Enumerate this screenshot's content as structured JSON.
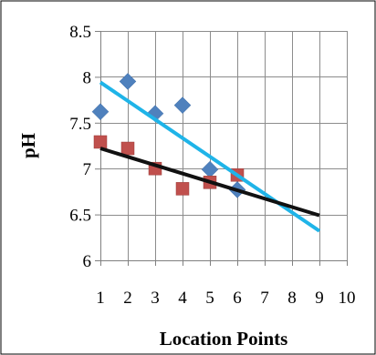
{
  "chart_data": {
    "type": "scatter",
    "title": "",
    "xlabel": "Location Points",
    "ylabel": "pH",
    "xlim": [
      1,
      10
    ],
    "ylim": [
      6,
      8.5
    ],
    "xticks": [
      1,
      2,
      3,
      4,
      5,
      6,
      7,
      8,
      9,
      10
    ],
    "yticks": [
      6,
      6.5,
      7,
      7.5,
      8,
      8.5
    ],
    "ytick_labels": [
      "6",
      "6.5",
      "7",
      "7.5",
      "8",
      "8.5"
    ],
    "grid": true,
    "legend": "none",
    "series": [
      {
        "marker": "diamond",
        "color": "#4f81bd",
        "points": [
          [
            1,
            7.62
          ],
          [
            2,
            7.95
          ],
          [
            3,
            7.6
          ],
          [
            4,
            7.69
          ],
          [
            5,
            6.99
          ],
          [
            6,
            6.77
          ]
        ]
      },
      {
        "marker": "square",
        "color": "#c0504d",
        "points": [
          [
            1,
            7.29
          ],
          [
            2,
            7.22
          ],
          [
            3,
            7.0
          ],
          [
            4,
            6.78
          ],
          [
            5,
            6.85
          ],
          [
            6,
            6.93
          ]
        ]
      }
    ],
    "trendlines": [
      {
        "color": "#1fb4e8",
        "from": [
          1,
          7.94
        ],
        "to": [
          9,
          6.32
        ]
      },
      {
        "color": "#111111",
        "from": [
          1,
          7.22
        ],
        "to": [
          9,
          6.49
        ]
      }
    ]
  }
}
